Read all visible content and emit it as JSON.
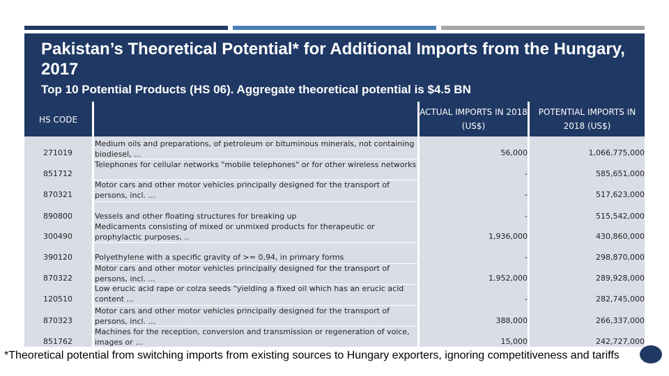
{
  "title": "Pakistan’s Theoretical Potential* for Additional Imports from the Hungary, 2017",
  "subtitle": "Top 10 Potential Products (HS 06). Aggregate theoretical potential is $4.5 BN",
  "table": {
    "headers": {
      "code": "HS CODE",
      "description": "",
      "actual": "ACTUAL IMPORTS IN 2018 (US$)",
      "potential": "POTENTIAL IMPORTS IN 2018 (US$)"
    },
    "rows": [
      {
        "code": "271019",
        "description": "Medium oils and preparations, of petroleum or bituminous minerals, not containing biodiesel, ...",
        "actual": "56,000",
        "potential": "1,066,775,000"
      },
      {
        "code": "851712",
        "description": "Telephones for cellular networks \"mobile telephones\" or for other wireless networks",
        "actual": "-",
        "potential": "585,651,000"
      },
      {
        "code": "870321",
        "description": "Motor cars and other motor vehicles principally designed for the transport of persons, incl. ...",
        "actual": "-",
        "potential": "517,623,000"
      },
      {
        "code": "890800",
        "description": "Vessels and other floating structures for breaking up",
        "actual": "-",
        "potential": "515,542,000"
      },
      {
        "code": "300490",
        "description": "Medicaments consisting of mixed or unmixed products for therapeutic or prophylactic purposes, ..",
        "actual": "1,936,000",
        "potential": "430,860,000"
      },
      {
        "code": "390120",
        "description": "Polyethylene with a specific gravity of >= 0,94, in primary forms",
        "actual": "-",
        "potential": "298,870,000"
      },
      {
        "code": "870322",
        "description": "Motor cars and other motor vehicles principally designed for the transport of persons, incl. ...",
        "actual": "1,952,000",
        "potential": "289,928,000"
      },
      {
        "code": "120510",
        "description": "Low erucic acid rape or colza seeds \"yielding a fixed oil which has an erucic acid content ...",
        "actual": "-",
        "potential": "282,745,000"
      },
      {
        "code": "870323",
        "description": "Motor cars and other motor vehicles principally designed for the transport of persons, incl. ...",
        "actual": "388,000",
        "potential": "266,337,000"
      },
      {
        "code": "851762",
        "description": "Machines for the reception, conversion and transmission or regeneration of voice, images or ...",
        "actual": "15,000",
        "potential": "242,727,000"
      }
    ]
  },
  "footnote": "*Theoretical potential from switching imports from existing sources to Hungary exporters, ignoring competitiveness and tariffs",
  "colors": {
    "navy": "#1f3864",
    "steel_blue": "#4a7fb5",
    "gray": "#a6a6a6",
    "table_body": "#d9dde6"
  }
}
